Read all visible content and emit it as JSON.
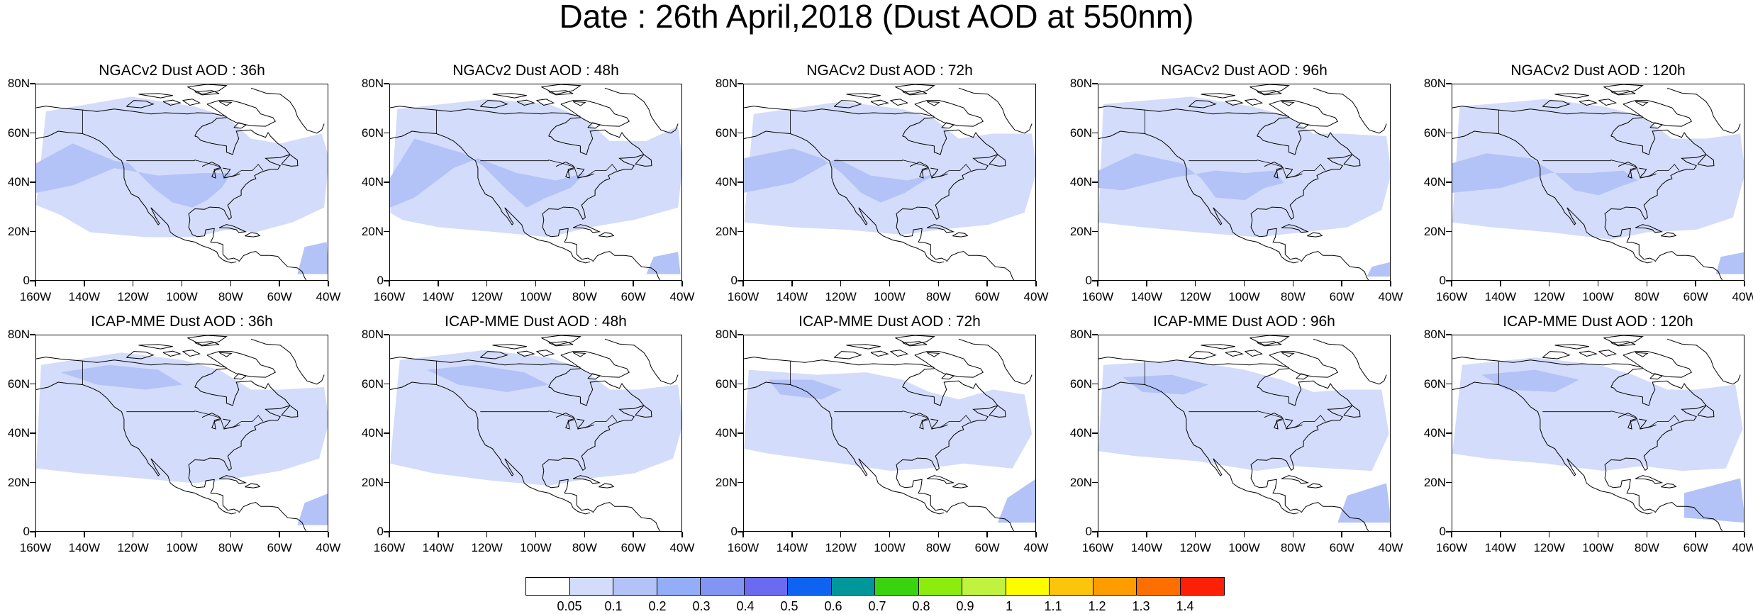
{
  "title": "Date : 26th April,2018 (Dust AOD at 550nm)",
  "panels": [
    {
      "title": "NGACv2 Dust AOD : 36h"
    },
    {
      "title": "NGACv2 Dust AOD : 48h"
    },
    {
      "title": "NGACv2 Dust AOD : 72h"
    },
    {
      "title": "NGACv2 Dust AOD : 96h"
    },
    {
      "title": "NGACv2 Dust AOD : 120h"
    },
    {
      "title": "ICAP-MME Dust AOD : 36h"
    },
    {
      "title": "ICAP-MME Dust AOD : 48h"
    },
    {
      "title": "ICAP-MME Dust AOD : 72h"
    },
    {
      "title": "ICAP-MME Dust AOD : 96h"
    },
    {
      "title": "ICAP-MME Dust AOD : 120h"
    }
  ],
  "lat_labels": [
    "80N",
    "60N",
    "40N",
    "20N",
    "0"
  ],
  "lon_labels": [
    "160W",
    "140W",
    "120W",
    "100W",
    "80W",
    "60W",
    "40W"
  ],
  "colorbar": {
    "labels": [
      "0.05",
      "0.1",
      "0.2",
      "0.3",
      "0.4",
      "0.5",
      "0.6",
      "0.7",
      "0.8",
      "0.9",
      "1",
      "1.1",
      "1.2",
      "1.3",
      "1.4"
    ],
    "colors": [
      "#ffffff",
      "#d3dcfa",
      "#b3c3f7",
      "#93adf7",
      "#8295f5",
      "#6a6bf0",
      "#0e63f0",
      "#00969a",
      "#3ad30f",
      "#8cec0d",
      "#bff33f",
      "#fdfd00",
      "#fdc40c",
      "#fe9d00",
      "#fe6f00",
      "#fd2006"
    ]
  }
}
